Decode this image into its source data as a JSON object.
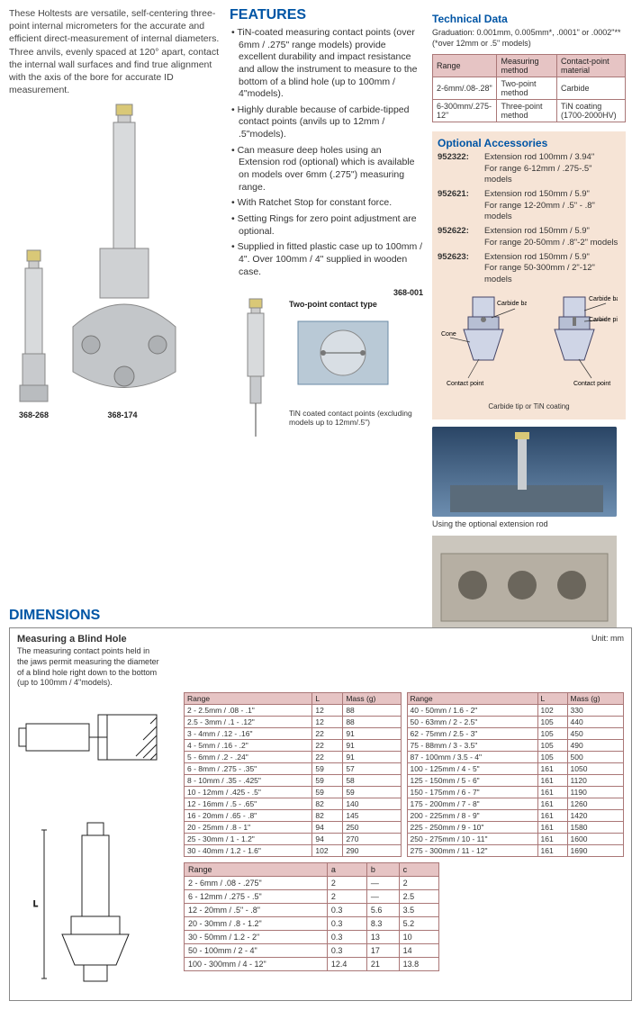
{
  "intro": "These Holtests are versatile, self-centering three-point internal micrometers for the accurate and efficient direct-measurement of internal diameters. Three anvils, evenly spaced at 120° apart, contact the internal wall surfaces and find true alignment with the axis of the bore for accurate ID measurement.",
  "features_title": "FEATURES",
  "features": [
    "TiN-coated measuring contact points (over 6mm / .275\" range models) provide excellent durability and impact resistance and allow the instrument to measure to the bottom of a blind hole (up to 100mm / 4\"models).",
    "Highly durable because of carbide-tipped contact points (anvils up to 12mm / .5\"models).",
    "Can measure deep holes using an Extension rod (optional) which is available on models over 6mm (.275\") measuring range.",
    "With Ratchet Stop for constant force.",
    "Setting Rings for zero point adjustment are optional.",
    "Supplied in fitted plastic case up to 100mm / 4\". Over 100mm / 4\" supplied in wooden case."
  ],
  "prod_labels": {
    "p1": "368-268",
    "p2": "368-174",
    "p3": "368-001"
  },
  "twopoint_label": "Two-point contact type",
  "tin_caption": "TiN coated contact points (excluding models up to 12mm/.5\")",
  "tech_title": "Technical Data",
  "graduation": "Graduation:  0.001mm, 0.005mm*, .0001\" or .0002\"** (*over 12mm or .5\" models)",
  "tech_headers": [
    "Range",
    "Measuring method",
    "Contact-point material"
  ],
  "tech_rows": [
    [
      "2-6mm/.08-.28\"",
      "Two-point method",
      "Carbide"
    ],
    [
      "6-300mm/.275-12\"",
      "Three-point method",
      "TiN coating (1700-2000HV)"
    ]
  ],
  "acc_title": "Optional Accessories",
  "acc_rows": [
    {
      "pn": "952322:",
      "desc": "Extension rod 100mm / 3.94\"\nFor range 6-12mm / .275-.5\" models"
    },
    {
      "pn": "952621:",
      "desc": "Extension rod 150mm / 5.9\"\nFor range 12-20mm / .5\" - .8\" models"
    },
    {
      "pn": "952622:",
      "desc": "Extension rod 150mm / 5.9\"\nFor range 20-50mm / .8\"-2\" models"
    },
    {
      "pn": "952623:",
      "desc": "Extension rod 150mm / 5.9\"\nFor range 50-300mm / 2\"-12\" models"
    }
  ],
  "cone_labels": {
    "carbide_ball": "Carbide ball",
    "carbide_pin": "Carbide pin",
    "cone": "Cone",
    "contact_point": "Contact point",
    "tip_note": "Carbide tip or TiN coating"
  },
  "ext_caption": "Using the optional extension rod",
  "dimensions_title": "DIMENSIONS",
  "blind_title": "Measuring a Blind Hole",
  "blind_note": "The measuring contact points held in the jaws permit measuring the diameter of a blind hole right down to the bottom (up to 100mm / 4\"models).",
  "unit_label": "Unit: mm",
  "dim_headers": [
    "Range",
    "L",
    "Mass (g)"
  ],
  "dim_rows_left": [
    [
      "2 - 2.5mm / .08 - .1\"",
      "12",
      "88"
    ],
    [
      "2.5 - 3mm / .1 - .12\"",
      "12",
      "88"
    ],
    [
      "3 - 4mm / .12 - .16\"",
      "22",
      "91"
    ],
    [
      "4 - 5mm / .16 - .2\"",
      "22",
      "91"
    ],
    [
      "5 - 6mm / .2 - .24\"",
      "22",
      "91"
    ],
    [
      "6 - 8mm / .275 - .35\"",
      "59",
      "57"
    ],
    [
      "8 - 10mm / .35 - .425\"",
      "59",
      "58"
    ],
    [
      "10 - 12mm / .425 - .5\"",
      "59",
      "59"
    ],
    [
      "12 - 16mm / .5 - .65\"",
      "82",
      "140"
    ],
    [
      "16 - 20mm / .65 - .8\"",
      "82",
      "145"
    ],
    [
      "20 - 25mm / .8 - 1\"",
      "94",
      "250"
    ],
    [
      "25 - 30mm / 1 - 1.2\"",
      "94",
      "270"
    ],
    [
      "30 - 40mm / 1.2 - 1.6\"",
      "102",
      "290"
    ]
  ],
  "dim_rows_right": [
    [
      "40 - 50mm / 1.6 - 2\"",
      "102",
      "330"
    ],
    [
      "50 - 63mm / 2 - 2.5\"",
      "105",
      "440"
    ],
    [
      "62 - 75mm / 2.5 - 3\"",
      "105",
      "450"
    ],
    [
      "75 - 88mm / 3 - 3.5\"",
      "105",
      "490"
    ],
    [
      "87 - 100mm / 3.5 - 4\"",
      "105",
      "500"
    ],
    [
      "100 - 125mm / 4 - 5\"",
      "161",
      "1050"
    ],
    [
      "125 - 150mm / 5 - 6\"",
      "161",
      "1120"
    ],
    [
      "150 - 175mm / 6 - 7\"",
      "161",
      "1190"
    ],
    [
      "175 - 200mm / 7 - 8\"",
      "161",
      "1260"
    ],
    [
      "200 - 225mm / 8 - 9\"",
      "161",
      "1420"
    ],
    [
      "225 - 250mm / 9 - 10\"",
      "161",
      "1580"
    ],
    [
      "250 - 275mm / 10 - 11\"",
      "161",
      "1600"
    ],
    [
      "275 - 300mm / 11 - 12\"",
      "161",
      "1690"
    ]
  ],
  "abc_headers": [
    "Range",
    "a",
    "b",
    "c"
  ],
  "abc_rows": [
    [
      "2 - 6mm / .08 - .275\"",
      "2",
      "—",
      "2"
    ],
    [
      "6 - 12mm / .275 - .5\"",
      "2",
      "—",
      "2.5"
    ],
    [
      "12 - 20mm / .5\" - .8\"",
      "0.3",
      "5.6",
      "3.5"
    ],
    [
      "20 - 30mm / .8 - 1.2\"",
      "0.3",
      "8.3",
      "5.2"
    ],
    [
      "30 - 50mm / 1.2 - 2\"",
      "0.3",
      "13",
      "10"
    ],
    [
      "50 - 100mm / 2 - 4\"",
      "0.3",
      "17",
      "14"
    ],
    [
      "100 - 300mm / 4 - 12\"",
      "12.4",
      "21",
      "13.8"
    ]
  ],
  "colors": {
    "heading": "#0055a5",
    "table_header_bg": "#e6c4c4",
    "acc_bg": "#f6e4d6",
    "border": "#a77"
  }
}
